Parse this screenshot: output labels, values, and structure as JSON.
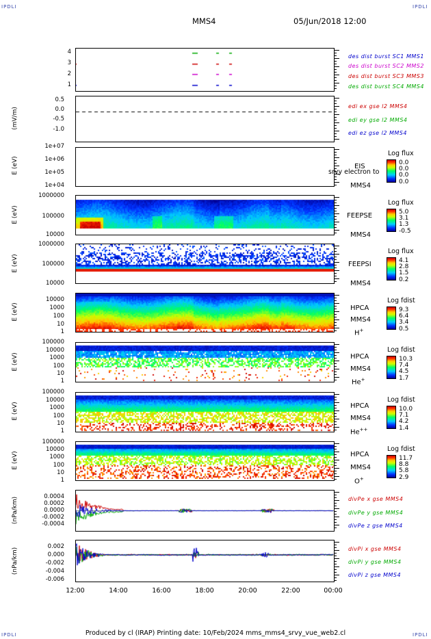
{
  "corners": {
    "tl": "IPDLI",
    "tr": "IPDLI",
    "bl": "IPDLI",
    "br": "IPDLI"
  },
  "header": {
    "spacecraft": "MMS4",
    "datetime": "05/Jun/2018 12:00"
  },
  "footer": {
    "text": "Produced by cl (IRAP)   Printing date: 10/Feb/2024   mms_mms4_srvy_vue_web2.cl"
  },
  "chart_data": {
    "type": "multi-panel",
    "x_ticks": [
      "12:00",
      "14:00",
      "16:00",
      "18:00",
      "20:00",
      "22:00",
      "00:00"
    ],
    "panels": [
      {
        "id": "burst",
        "type": "timeline",
        "yticks": [
          "4",
          "3",
          "2",
          "1"
        ],
        "legend": [
          {
            "text": "des dist burst SC1 MMS1",
            "color": "#0000cc"
          },
          {
            "text": "des dist burst SC2 MMS2",
            "color": "#cc00cc"
          },
          {
            "text": "des dist burst SC3 MMS3",
            "color": "#cc0000"
          },
          {
            "text": "des dist burst SC4 MMS4",
            "color": "#00aa00"
          }
        ]
      },
      {
        "id": "edi",
        "type": "line",
        "ylabel": "(mV/m)",
        "yticks": [
          "0.5",
          "0.0",
          "-0.5",
          "-1.0"
        ],
        "ylim": [
          -1.25,
          0.65
        ],
        "legend": [
          {
            "text": "edi ex gse l2 MMS4",
            "color": "#cc0000"
          },
          {
            "text": "edi ey gse l2 MMS4",
            "color": "#00aa00"
          },
          {
            "text": "edi ez gse l2 MMS4",
            "color": "#0000cc"
          }
        ]
      },
      {
        "id": "eis",
        "type": "heatmap",
        "ylabel": "E (eV)",
        "yticks": [
          "1e+07",
          "1e+06",
          "1e+05",
          "1e+04"
        ],
        "inst": [
          "EIS",
          "MMS4"
        ],
        "overlay": "srvy electron to",
        "cbtitle": "Log flux",
        "cbvalues": [
          "0.0",
          "0.0",
          "0.0",
          "0.0"
        ]
      },
      {
        "id": "feepse",
        "type": "heatmap",
        "ylabel": "E (eV)",
        "yticks": [
          "1000000",
          "100000",
          "10000"
        ],
        "inst": [
          "FEEPSE",
          "MMS4"
        ],
        "cbtitle": "Log flux",
        "cbvalues": [
          "5.0",
          "3.1",
          "1.3",
          "-0.5"
        ]
      },
      {
        "id": "feepsi",
        "type": "heatmap",
        "ylabel": "E (eV)",
        "yticks": [
          "1000000",
          "100000",
          "10000"
        ],
        "inst": [
          "FEEPSI",
          "MMS4"
        ],
        "cbtitle": "Log flux",
        "cbvalues": [
          "4.1",
          "2.8",
          "1.5",
          "0.2"
        ]
      },
      {
        "id": "hpca_h",
        "type": "heatmap",
        "ylabel": "E (eV)",
        "yticks": [
          "10000",
          "1000",
          "100",
          "10",
          "1"
        ],
        "inst": [
          "HPCA",
          "MMS4",
          "H+"
        ],
        "cbtitle": "Log fdist",
        "cbvalues": [
          "9.3",
          "6.4",
          "3.4",
          "0.5"
        ]
      },
      {
        "id": "hpca_he",
        "type": "heatmap",
        "ylabel": "E (eV)",
        "yticks": [
          "100000",
          "10000",
          "1000",
          "100",
          "10",
          "1"
        ],
        "inst": [
          "HPCA",
          "MMS4",
          "He+"
        ],
        "cbtitle": "Log fdist",
        "cbvalues": [
          "10.3",
          "7.4",
          "4.5",
          "1.7"
        ]
      },
      {
        "id": "hpca_hepp",
        "type": "heatmap",
        "ylabel": "E (eV)",
        "yticks": [
          "100000",
          "10000",
          "1000",
          "100",
          "10",
          "1"
        ],
        "inst": [
          "HPCA",
          "MMS4",
          "He++"
        ],
        "cbtitle": "Log fdist",
        "cbvalues": [
          "10.0",
          "7.1",
          "4.2",
          "1.4"
        ]
      },
      {
        "id": "hpca_o",
        "type": "heatmap",
        "ylabel": "E (eV)",
        "yticks": [
          "100000",
          "10000",
          "1000",
          "100",
          "10",
          "1"
        ],
        "inst": [
          "HPCA",
          "MMS4",
          "O+"
        ],
        "cbtitle": "Log fdist",
        "cbvalues": [
          "11.7",
          "8.8",
          "5.8",
          "2.9"
        ]
      },
      {
        "id": "divpe",
        "type": "line",
        "ylabel": "(nPa/km)",
        "yticks": [
          "0.0004",
          "0.0002",
          "0.0000",
          "-0.0002",
          "-0.0004"
        ],
        "ylim": [
          -0.0006,
          0.0006
        ],
        "legend": [
          {
            "text": "divPe x gse MMS4",
            "color": "#cc0000"
          },
          {
            "text": "divPe y gse MMS4",
            "color": "#00aa00"
          },
          {
            "text": "divPe z gse MMS4",
            "color": "#0000cc"
          }
        ]
      },
      {
        "id": "divpi",
        "type": "line",
        "ylabel": "(nPa/km)",
        "yticks": [
          "0.002",
          "0.000",
          "-0.002",
          "-0.004",
          "-0.006"
        ],
        "ylim": [
          -0.0065,
          0.0035
        ],
        "legend": [
          {
            "text": "divPi x gse MMS4",
            "color": "#cc0000"
          },
          {
            "text": "divPi y gse MMS4",
            "color": "#00aa00"
          },
          {
            "text": "divPi z gse MMS4",
            "color": "#0000cc"
          }
        ]
      }
    ]
  }
}
